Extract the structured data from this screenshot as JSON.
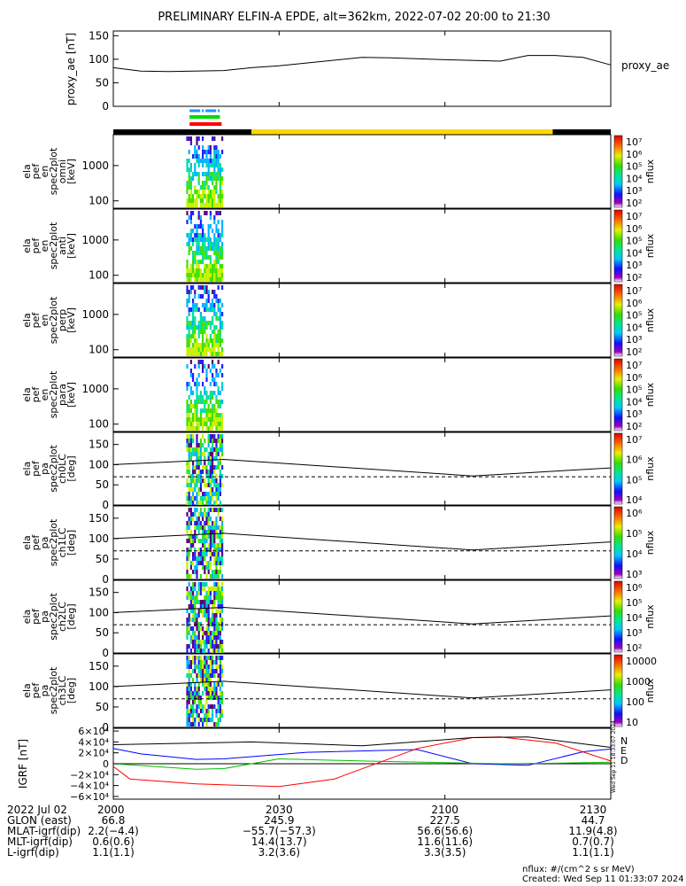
{
  "title": "PRELIMINARY ELFIN-A EPDE, alt=362km, 2022-07-02 20:00 to 21:30",
  "colors": {
    "ae_line": "#000000",
    "dashed": "#000000",
    "grf_N": "#0000ff",
    "grf_E": "#00c000",
    "grf_D": "#ff0000",
    "bar_black": "#000000",
    "bar_yellow": "#ffd700"
  },
  "chart_data": [
    {
      "type": "line",
      "name": "proxy_ae",
      "ylabel": "proxy_ae [nT]",
      "legend": "proxy_ae",
      "ylim": [
        0,
        160
      ],
      "yticks": [
        "150",
        "100",
        "50",
        "0"
      ],
      "x_minutes": [
        0,
        5,
        10,
        20,
        25,
        30,
        45,
        50,
        60,
        70,
        75,
        80,
        85,
        90
      ],
      "values": [
        82,
        75,
        74,
        76,
        82,
        86,
        104,
        103,
        99,
        96,
        108,
        108,
        104,
        88
      ]
    },
    {
      "type": "heatmap",
      "name": "spec_omni",
      "ylabel": [
        "ela",
        "pef",
        "en",
        "spec2plot",
        "omni",
        "[keV]"
      ],
      "yticks": [
        "1000",
        "100"
      ],
      "cbar_ticks": [
        "10⁷",
        "10⁶",
        "10⁵",
        "10⁴",
        "10³",
        "10²"
      ],
      "cbar_label": "nflux"
    },
    {
      "type": "heatmap",
      "name": "spec_anti",
      "ylabel": [
        "ela",
        "pef",
        "en",
        "spec2plot",
        "anti",
        "[keV]"
      ],
      "yticks": [
        "1000",
        "100"
      ],
      "cbar_ticks": [
        "10⁷",
        "10⁶",
        "10⁵",
        "10⁴",
        "10³",
        "10²"
      ],
      "cbar_label": "nflux"
    },
    {
      "type": "heatmap",
      "name": "spec_perp",
      "ylabel": [
        "ela",
        "pef",
        "en",
        "spec2plot",
        "perp",
        "[keV]"
      ],
      "yticks": [
        "1000",
        "100"
      ],
      "cbar_ticks": [
        "10⁷",
        "10⁶",
        "10⁵",
        "10⁴",
        "10³",
        "10²"
      ],
      "cbar_label": "nflux"
    },
    {
      "type": "heatmap",
      "name": "spec_para",
      "ylabel": [
        "ela",
        "pef",
        "en",
        "spec2plot",
        "para",
        "[keV]"
      ],
      "yticks": [
        "1000",
        "100"
      ],
      "cbar_ticks": [
        "10⁷",
        "10⁶",
        "10⁵",
        "10⁴",
        "10³",
        "10²"
      ],
      "cbar_label": "nflux"
    },
    {
      "type": "heatmap",
      "name": "pa_ch0",
      "ylabel": [
        "ela",
        "pef",
        "pa",
        "spec2plot",
        "ch0LC",
        "[deg]"
      ],
      "ylim": [
        0,
        180
      ],
      "yticks": [
        "150",
        "100",
        "50",
        "0"
      ],
      "cbar_ticks": [
        "10⁷",
        "10⁶",
        "10⁵",
        "10⁴"
      ],
      "cbar_label": "nflux"
    },
    {
      "type": "heatmap",
      "name": "pa_ch1",
      "ylabel": [
        "ela",
        "pef",
        "pa",
        "spec2plot",
        "ch1LC",
        "[deg]"
      ],
      "ylim": [
        0,
        180
      ],
      "yticks": [
        "150",
        "100",
        "50",
        "0"
      ],
      "cbar_ticks": [
        "10⁶",
        "10⁵",
        "10⁴",
        "10³"
      ],
      "cbar_label": "nflux"
    },
    {
      "type": "heatmap",
      "name": "pa_ch2",
      "ylabel": [
        "ela",
        "pef",
        "pa",
        "spec2plot",
        "ch2LC",
        "[deg]"
      ],
      "ylim": [
        0,
        180
      ],
      "yticks": [
        "150",
        "100",
        "50",
        "0"
      ],
      "cbar_ticks": [
        "10⁶",
        "10⁵",
        "10⁴",
        "10³",
        "10²"
      ],
      "cbar_label": "nflux"
    },
    {
      "type": "heatmap",
      "name": "pa_ch3",
      "ylabel": [
        "ela",
        "pef",
        "pa",
        "spec2plot",
        "ch3LC",
        "[deg]"
      ],
      "ylim": [
        0,
        180
      ],
      "yticks": [
        "150",
        "100",
        "50",
        "0"
      ],
      "cbar_ticks": [
        "10000",
        "1000",
        "100",
        "10"
      ],
      "cbar_label": "nflux"
    },
    {
      "type": "line",
      "name": "IGRF",
      "ylabel": "IGRF [nT]",
      "ylim": [
        -65000,
        65000
      ],
      "yticks": [
        "6×10⁴",
        "4×10⁴",
        "2×10⁴",
        "0",
        "−2×10⁴",
        "−4×10⁴",
        "−6×10⁴"
      ],
      "legend": [
        "N",
        "E",
        "D"
      ],
      "series": [
        {
          "name": "N",
          "x_minutes": [
            0,
            5,
            15,
            20,
            35,
            55,
            65,
            75,
            85,
            90
          ],
          "values": [
            28000,
            18000,
            8000,
            9000,
            21000,
            26000,
            0,
            -3000,
            22000,
            27000
          ]
        },
        {
          "name": "E",
          "x_minutes": [
            0,
            15,
            20,
            30,
            45,
            70,
            80,
            90
          ],
          "values": [
            0,
            -10000,
            -9000,
            9000,
            5000,
            0,
            1000,
            3000
          ]
        },
        {
          "name": "D",
          "x_minutes": [
            0,
            3,
            15,
            30,
            40,
            55,
            65,
            70,
            80,
            90
          ],
          "values": [
            -5000,
            -28000,
            -37000,
            -42000,
            -28000,
            28000,
            48000,
            49000,
            38000,
            5000
          ]
        },
        {
          "name": "total",
          "x_minutes": [
            0,
            25,
            45,
            65,
            75,
            90
          ],
          "values": [
            35000,
            40000,
            33000,
            48000,
            49000,
            30000
          ]
        }
      ]
    }
  ],
  "x_axis": {
    "range_minutes": [
      0,
      90
    ],
    "tick_minutes": [
      0,
      30,
      60,
      90
    ],
    "tick_labels": [
      "2000",
      "2030",
      "2100",
      "2130"
    ]
  },
  "footer": {
    "rows": [
      {
        "label": "2022 Jul 02",
        "vals": [
          "2000",
          "",
          "",
          ""
        ]
      },
      {
        "label": "GLON (east)",
        "vals": [
          "66.8",
          "245.9",
          "227.5",
          "44.7"
        ]
      },
      {
        "label": "MLAT-igrf(dip)",
        "vals": [
          "2.2(−4.4)",
          "−55.7(−57.3)",
          "56.6(56.6)",
          "11.9(4.8)"
        ]
      },
      {
        "label": "MLT-igrf(dip)",
        "vals": [
          "0.6(0.6)",
          "14.4(13.7)",
          "11.6(11.6)",
          "0.7(0.7)"
        ]
      },
      {
        "label": "L-igrf(dip)",
        "vals": [
          "1.1(1.1)",
          "3.2(3.6)",
          "3.3(3.5)",
          "1.1(1.1)"
        ]
      }
    ],
    "units": "nflux: #/(cm^2 s sr MeV)",
    "created": "Created: Wed Sep 11 01:33:07 2024",
    "side_stamp": "Wed Sep 11 18:33:07 2024"
  }
}
